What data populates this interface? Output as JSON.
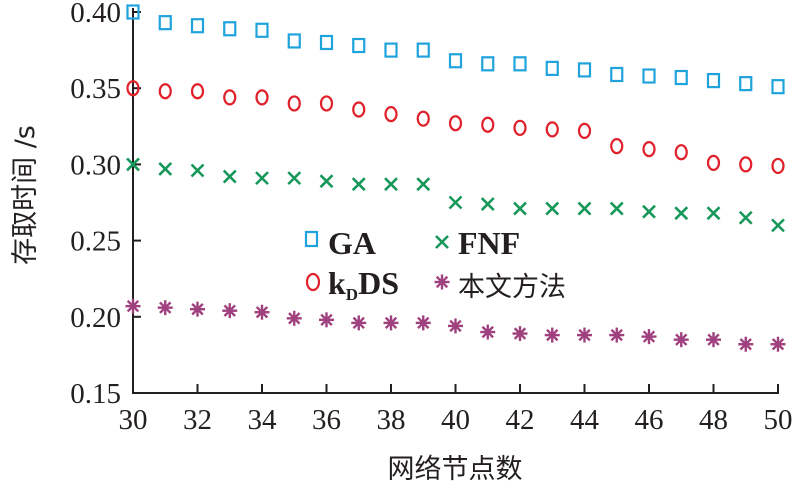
{
  "chart_data": {
    "type": "scatter",
    "xlabel": "网络节点数",
    "ylabel": "存取时间 /s",
    "xlim": [
      30,
      50
    ],
    "ylim": [
      0.15,
      0.4
    ],
    "xticks": [
      "30",
      "32",
      "34",
      "36",
      "38",
      "40",
      "42",
      "44",
      "46",
      "48",
      "50"
    ],
    "yticks": [
      "0.15",
      "0.20",
      "0.25",
      "0.30",
      "0.35",
      "0.40"
    ],
    "grid": false,
    "legend_position": "center",
    "x": [
      30,
      31,
      32,
      33,
      34,
      35,
      36,
      37,
      38,
      39,
      40,
      41,
      42,
      43,
      44,
      45,
      46,
      47,
      48,
      49,
      50
    ],
    "series": [
      {
        "name": "GA",
        "marker": "square",
        "color": "#1fa3dc",
        "values": [
          0.4,
          0.393,
          0.391,
          0.389,
          0.388,
          0.381,
          0.38,
          0.378,
          0.375,
          0.375,
          0.368,
          0.366,
          0.366,
          0.363,
          0.362,
          0.359,
          0.358,
          0.357,
          0.355,
          0.353,
          0.351
        ]
      },
      {
        "name": "FNF",
        "marker": "x",
        "color": "#17985a",
        "values": [
          0.3,
          0.297,
          0.296,
          0.292,
          0.291,
          0.291,
          0.289,
          0.287,
          0.287,
          0.287,
          0.275,
          0.274,
          0.271,
          0.271,
          0.271,
          0.271,
          0.269,
          0.268,
          0.268,
          0.265,
          0.26
        ]
      },
      {
        "name": "kDS",
        "name_main": "k",
        "name_sub": "D",
        "name_tail": "DS",
        "marker": "circle",
        "color": "#e0202a",
        "values": [
          0.35,
          0.348,
          0.348,
          0.344,
          0.344,
          0.34,
          0.34,
          0.336,
          0.333,
          0.33,
          0.327,
          0.326,
          0.324,
          0.323,
          0.322,
          0.312,
          0.31,
          0.308,
          0.301,
          0.3,
          0.299
        ]
      },
      {
        "name": "本文方法",
        "marker": "asterisk",
        "color": "#a0417f",
        "values": [
          0.207,
          0.206,
          0.205,
          0.204,
          0.203,
          0.199,
          0.198,
          0.196,
          0.196,
          0.196,
          0.194,
          0.19,
          0.189,
          0.188,
          0.188,
          0.188,
          0.187,
          0.185,
          0.185,
          0.182,
          0.182
        ]
      }
    ]
  }
}
